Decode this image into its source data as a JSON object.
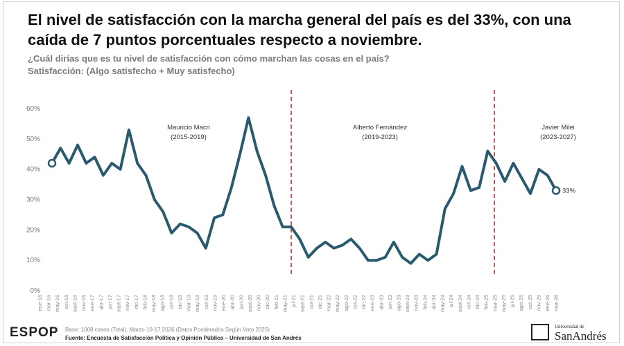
{
  "title": "El nivel de satisfacción con la marcha general del país es del 33%, con una caída de 7 puntos porcentuales respecto a noviembre.",
  "subtitle": "¿Cuál dirías que es tu nivel de satisfacción con cómo marchan las cosas en el país?",
  "subtitle2": "Satisfacción: (Algo satisfecho + Muy satisfecho)",
  "chart_data": {
    "type": "line",
    "color": "#2a5a6e",
    "categories": [
      "ene-16",
      "mar-16",
      "may-16",
      "jun-16",
      "sept-16",
      "nov-16",
      "ene-17",
      "abr-17",
      "jun-17",
      "sept-17",
      "nov-17",
      "dic-17",
      "feb-18",
      "may-18",
      "ago-18",
      "oct-18",
      "dic-18",
      "mar-19",
      "may-19",
      "oct-19",
      "nov-19",
      "ene-20",
      "abr-20",
      "jun-20",
      "sept-20",
      "nov-20",
      "dic-20",
      "feb-21",
      "may-21",
      "jul-21",
      "sept-21",
      "oct-21",
      "dic-21",
      "mar-22",
      "may-22",
      "ago-22",
      "oct-22",
      "dic-22",
      "ene-23",
      "abr-23",
      "jun-23",
      "ago-23",
      "sept-23",
      "nov-23",
      "feb-24",
      "abr-24",
      "may-24",
      "jul-24",
      "sept-24",
      "oct-24",
      "dic-24",
      "feb-25",
      "mar-25",
      "may-25",
      "jul-25",
      "ago-25",
      "oct-25",
      "nov-25",
      "ene-26",
      "mar-26"
    ],
    "values": [
      42,
      47,
      42,
      48,
      42,
      44,
      38,
      42,
      40,
      53,
      42,
      38,
      30,
      26,
      19,
      22,
      21,
      19,
      14,
      24,
      25,
      34,
      45,
      57,
      46,
      38,
      28,
      21,
      21,
      17,
      11,
      14,
      16,
      14,
      15,
      17,
      14,
      10,
      10,
      11,
      16,
      11,
      9,
      12,
      10,
      12,
      27,
      32,
      41,
      33,
      34,
      46,
      42,
      36,
      42,
      37,
      32,
      40,
      38,
      33
    ],
    "value_labels": [
      null,
      null,
      null,
      null,
      null,
      null,
      null,
      null,
      null,
      null,
      null,
      null,
      null,
      null,
      null,
      null,
      null,
      null,
      null,
      null,
      null,
      null,
      null,
      null,
      null,
      null,
      null,
      null,
      null,
      null,
      null,
      null,
      null,
      null,
      null,
      null,
      null,
      null,
      null,
      null,
      null,
      null,
      null,
      null,
      null,
      null,
      null,
      null,
      null,
      null,
      null,
      null,
      null,
      null,
      null,
      null,
      null,
      null,
      null,
      "33%"
    ],
    "ylim": [
      0,
      60
    ],
    "yticks": [
      {
        "value": 0,
        "label": "0%"
      },
      {
        "value": 10,
        "label": "10%"
      },
      {
        "value": 20,
        "label": "20%"
      },
      {
        "value": 30,
        "label": "30%"
      },
      {
        "value": 40,
        "label": "40%"
      },
      {
        "value": 50,
        "label": "50%"
      },
      {
        "value": 60,
        "label": "60%"
      }
    ],
    "annotations": [
      {
        "name": "Mauricio Macri",
        "period": "(2015-2019)"
      },
      {
        "name": "Alberto Fernández",
        "period": "(2019-2023)"
      },
      {
        "name": "Javier Milei",
        "period": "(2023-2027)"
      }
    ]
  },
  "footer": {
    "brand": "ESPOP",
    "base": "Base: 1008 casos (Total), Marzo 10-17 2026 (Datos Ponderados Según Voto 2025)",
    "source": "Fuente: Encuesta de Satisfacción Política y Opinión Pública – Universidad de San Andrés",
    "logo_small": "Universidad de",
    "logo_big": "SanAndrés"
  }
}
